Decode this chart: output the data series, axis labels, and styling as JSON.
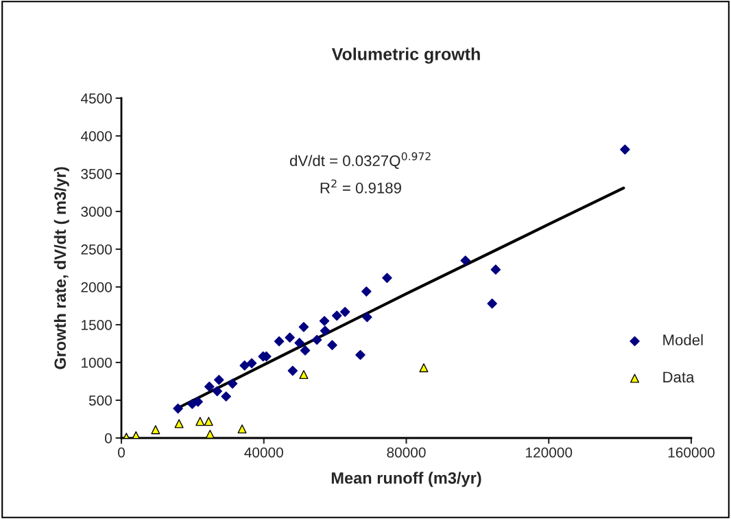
{
  "chart_data": {
    "type": "scatter",
    "title": "Volumetric growth",
    "xlabel": "Mean runoff (m3/yr)",
    "ylabel": "Growth rate, dV/dt ( m3/yr)",
    "xlim": [
      0,
      160000
    ],
    "xticks": [
      0,
      40000,
      80000,
      120000,
      160000
    ],
    "ylim": [
      0,
      4500
    ],
    "yticks": [
      0,
      500,
      1000,
      1500,
      2000,
      2500,
      3000,
      3500,
      4000,
      4500
    ],
    "grid": false,
    "legend": "right",
    "annotations": [
      "dV/dt = 0.0327Q$^{0.972}$",
      "R$^{2}$ = 0.9189"
    ],
    "series": [
      {
        "name": "Model",
        "marker": "diamond",
        "color": "#000080",
        "x": [
          15900,
          19900,
          21500,
          24700,
          27400,
          26900,
          29400,
          31200,
          34600,
          36600,
          39800,
          40700,
          44300,
          47300,
          48100,
          50000,
          51200,
          51600,
          54900,
          57000,
          57200,
          59200,
          60500,
          62800,
          67100,
          69000,
          68800,
          74600,
          96600,
          105100,
          104100,
          141400
        ],
        "values": [
          390,
          450,
          480,
          680,
          770,
          620,
          550,
          720,
          960,
          990,
          1080,
          1080,
          1280,
          1330,
          890,
          1260,
          1470,
          1160,
          1300,
          1550,
          1420,
          1230,
          1620,
          1670,
          1100,
          1600,
          1940,
          2120,
          2350,
          2230,
          1780,
          3820
        ]
      },
      {
        "name": "Data",
        "marker": "triangle",
        "color": "#ffff00",
        "x": [
          1400,
          4100,
          9600,
          16200,
          22100,
          24500,
          24900,
          33900,
          51200,
          84900
        ],
        "values": [
          10,
          30,
          110,
          190,
          220,
          220,
          50,
          120,
          840,
          930
        ]
      },
      {
        "type": "line",
        "color": "#000000",
        "line_style": "solid",
        "marker": "none",
        "x": [
          16000,
          40000,
          80000,
          120000,
          141000
        ],
        "values": [
          400,
          970,
          1910,
          2830,
          3310
        ]
      }
    ]
  }
}
